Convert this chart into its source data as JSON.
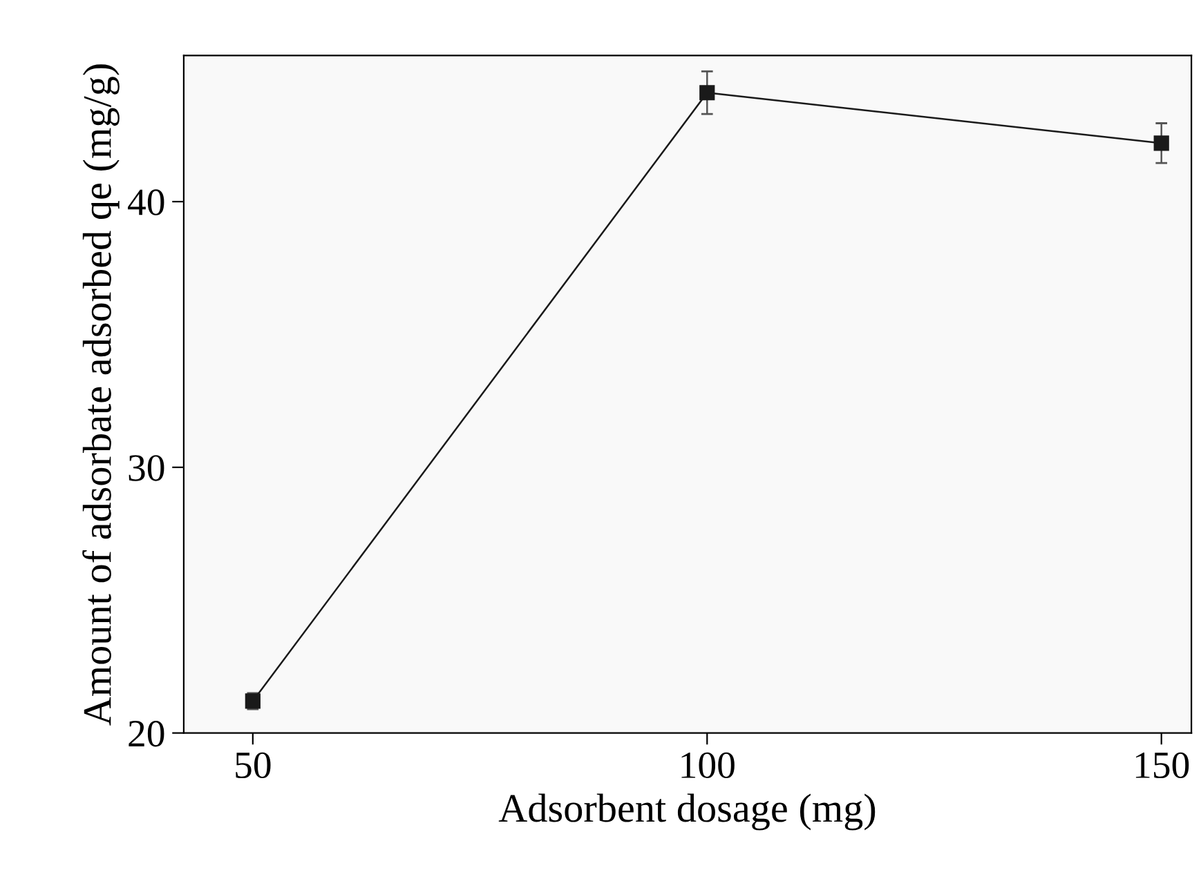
{
  "chart_data": {
    "type": "line",
    "xlabel": "Adsorbent dosage (mg)",
    "ylabel": "Amount of adsorbate adsorbed qe (mg/g)",
    "x": [
      50,
      100,
      150
    ],
    "series": [
      {
        "color": "#1a1a1a",
        "values": [
          21.2,
          44.1,
          42.2
        ],
        "errors": [
          0.3,
          0.8,
          0.75
        ]
      }
    ],
    "xlim": [
      42.4,
      153.3
    ],
    "ylim": [
      20,
      45.5
    ],
    "xticks": [
      50,
      100,
      150
    ],
    "yticks": [
      20,
      30,
      40
    ],
    "marker": "square",
    "line_style": "solid",
    "grid": false,
    "legend": false
  }
}
